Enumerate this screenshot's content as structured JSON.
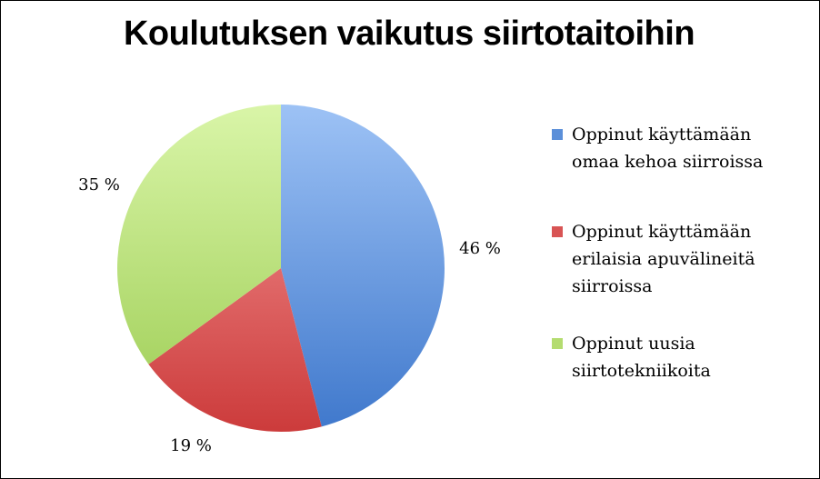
{
  "chart_data": {
    "type": "pie",
    "title": "Koulutuksen vaikutus siirtotaitoihin",
    "slices": [
      {
        "name": "Oppinut käyttämään omaa kehoa siirroissa",
        "value": 46,
        "label": "46 %",
        "color": "#5b8fd9",
        "color_light": "#9dc2f5",
        "color_dark": "#3f78cc",
        "label_position": "right"
      },
      {
        "name": "Oppinut käyttämään erilaisia apuvälineitä siirroissa",
        "value": 19,
        "label": "19 %",
        "color": "#d85454",
        "color_light": "#f69a9a",
        "color_dark": "#cc3b3b",
        "label_position": "bottom"
      },
      {
        "name": "Oppinut uusia siirtotekniikoita",
        "value": 35,
        "label": "35 %",
        "color": "#b4dc70",
        "color_light": "#d9f5a8",
        "color_dark": "#9ccc52",
        "label_position": "top-left"
      }
    ],
    "legend_placement": "right"
  }
}
